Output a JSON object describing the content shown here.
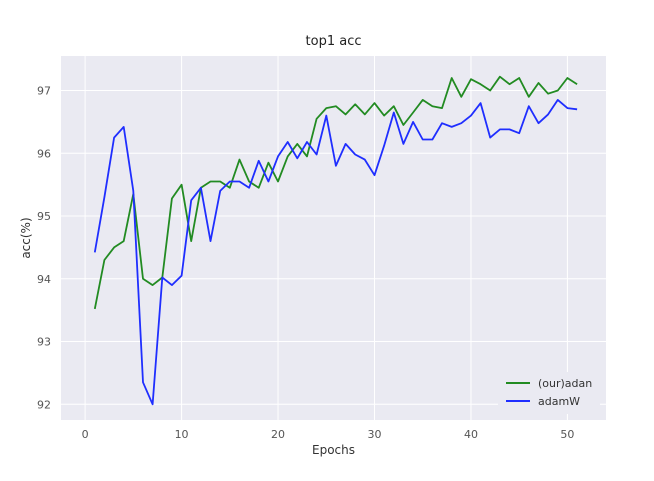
{
  "chart_data": {
    "type": "line",
    "title": "top1 acc",
    "xlabel": "Epochs",
    "ylabel": "acc(%)",
    "xlim": [
      -2.5,
      54
    ],
    "ylim": [
      91.75,
      97.55
    ],
    "xticks": [
      0,
      10,
      20,
      30,
      40,
      50
    ],
    "yticks": [
      92,
      93,
      94,
      95,
      96,
      97
    ],
    "grid": true,
    "legend_position": "bottom-right",
    "x": [
      1,
      2,
      3,
      4,
      5,
      6,
      7,
      8,
      9,
      10,
      11,
      12,
      13,
      14,
      15,
      16,
      17,
      18,
      19,
      20,
      21,
      22,
      23,
      24,
      25,
      26,
      27,
      28,
      29,
      30,
      31,
      32,
      33,
      34,
      35,
      36,
      37,
      38,
      39,
      40,
      41,
      42,
      43,
      44,
      45,
      46,
      47,
      48,
      49,
      50,
      51
    ],
    "series": [
      {
        "name": "(our)adan",
        "color": "#228B22",
        "values": [
          93.52,
          94.3,
          94.5,
          94.6,
          95.35,
          94.0,
          93.9,
          94.02,
          95.28,
          95.5,
          94.6,
          95.45,
          95.55,
          95.55,
          95.45,
          95.9,
          95.55,
          95.45,
          95.85,
          95.55,
          95.95,
          96.15,
          95.95,
          96.55,
          96.72,
          96.75,
          96.62,
          96.78,
          96.62,
          96.8,
          96.6,
          96.75,
          96.45,
          96.65,
          96.85,
          96.75,
          96.72,
          97.2,
          96.9,
          97.18,
          97.1,
          97.0,
          97.22,
          97.1,
          97.2,
          96.9,
          97.12,
          96.95,
          97.0,
          97.2,
          97.1
        ]
      },
      {
        "name": "adamW",
        "color": "#1f2eff",
        "values": [
          94.42,
          95.3,
          96.25,
          96.42,
          95.4,
          92.35,
          92.0,
          94.02,
          93.9,
          94.05,
          95.25,
          95.45,
          94.6,
          95.4,
          95.55,
          95.55,
          95.45,
          95.88,
          95.55,
          95.95,
          96.18,
          95.92,
          96.18,
          95.98,
          96.6,
          95.8,
          96.15,
          95.98,
          95.9,
          95.65,
          96.12,
          96.65,
          96.15,
          96.5,
          96.22,
          96.22,
          96.48,
          96.42,
          96.48,
          96.6,
          96.8,
          96.25,
          96.38,
          96.38,
          96.32,
          96.75,
          96.48,
          96.62,
          96.85,
          96.72,
          96.7
        ]
      }
    ]
  }
}
